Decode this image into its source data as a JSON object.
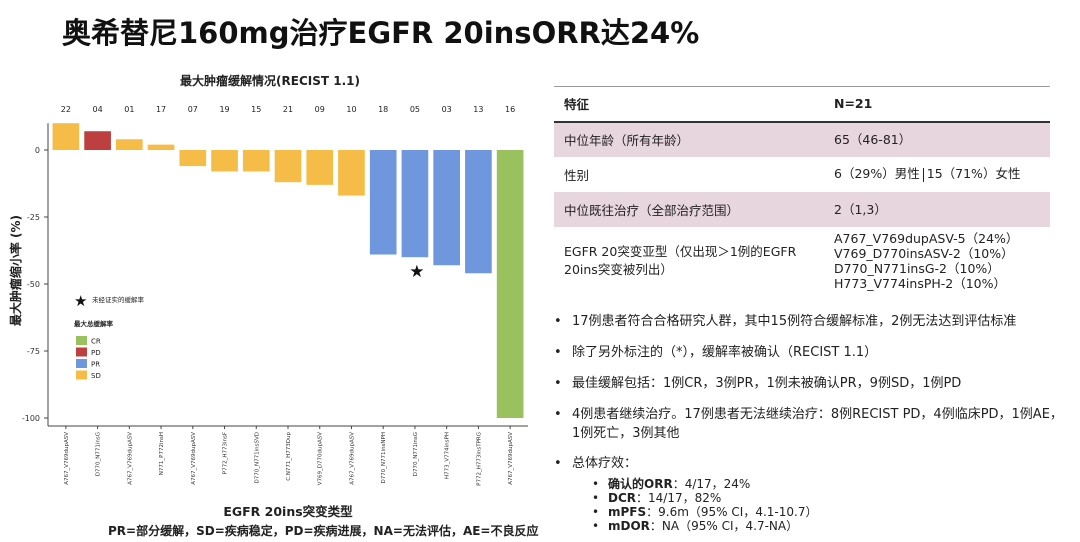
{
  "title": "奥希替尼160mg治疗EGFR 20insORR达24%",
  "chart_data": {
    "type": "bar",
    "title": "最大肿瘤缓解情况(RECIST 1.1)",
    "xlabel": "EGFR 20ins突变类型",
    "ylabel": "最大肿瘤缩小率 (%)",
    "ylim": [
      -100,
      10
    ],
    "yticks": [
      "0",
      "-25",
      "-50",
      "-75",
      "-100"
    ],
    "ytick_values": [
      0,
      -25,
      -50,
      -75,
      -100
    ],
    "patient_ids": [
      "22",
      "04",
      "01",
      "17",
      "07",
      "19",
      "15",
      "21",
      "09",
      "10",
      "18",
      "05",
      "03",
      "13",
      "16"
    ],
    "categories": [
      "A767_V769dupASV",
      "D770_N771insG",
      "A767_V769dupASV",
      "N771_P772insH",
      "A767_V769dupASV",
      "P772_H773insF",
      "D770_N771insSVD",
      "C.N771_H773Dup",
      "V769_D770dupASV",
      "A767_V769dupASV",
      "D770_N771insNPH",
      "D770_N771insG",
      "H773_V774insPH",
      "P772_H773insTPRG",
      "A767_V769dupASV"
    ],
    "values": [
      10,
      7,
      4,
      2,
      -6,
      -8,
      -8,
      -12,
      -13,
      -17,
      -39,
      -40,
      -43,
      -46,
      -100
    ],
    "response": [
      "SD",
      "PD",
      "SD",
      "SD",
      "SD",
      "SD",
      "SD",
      "SD",
      "SD",
      "SD",
      "PR",
      "PR",
      "PR",
      "PR",
      "CR"
    ],
    "unconfirmed_index": 11,
    "colors": {
      "CR": "#99c15d",
      "PD": "#bd3f3f",
      "PR": "#6f97dd",
      "SD": "#f5bc47"
    },
    "annotation": "未经证实的缓解率",
    "legend_title": "最大总缓解率",
    "legend": [
      "CR",
      "PD",
      "PR",
      "SD"
    ],
    "grid": false,
    "legend_position": "bottom-left"
  },
  "table": {
    "header": [
      "特征",
      "N=21"
    ],
    "rows": [
      {
        "label": "中位年龄（所有年龄）",
        "value": [
          "65（46-81）"
        ]
      },
      {
        "label": "性别",
        "value_a": "6（29%）男性",
        "value_b": "15（71%）女性"
      },
      {
        "label": "中位既往治疗（全部治疗范围）",
        "value": [
          "2（1,3）"
        ]
      },
      {
        "label": "EGFR 20突变亚型（仅出现＞1例的EGFR 20ins突变被列出）",
        "value": [
          "A767_V769dupASV-5（24%）",
          "V769_D770insASV-2（10%）",
          "D770_N771insG-2（10%）",
          "H773_V774insPH-2（10%）"
        ]
      }
    ]
  },
  "bullets": [
    "17例患者符合合格研究人群，其中15例符合缓解标准，2例无法达到评估标准",
    "除了另外标注的（*），缓解率被确认（RECIST 1.1）",
    "最佳缓解包括：1例CR，3例PR，1例未被确认PR，9例SD，1例PD",
    "4例患者继续治疗。17例患者无法继续治疗：8例RECIST PD，4例临床PD，1例AE，1例死亡，3例其他",
    "总体疗效："
  ],
  "efficacy": [
    {
      "label": "确认的ORR",
      "value": "：4/17，24%"
    },
    {
      "label": "DCR",
      "value": "：14/17，82%"
    },
    {
      "label": "mPFS",
      "value": "：9.6m（95% CI，4.1-10.7）"
    },
    {
      "label": "mDOR",
      "value": "：NA（95% CI，4.7-NA）"
    }
  ],
  "footnote": "PR=部分缓解，SD=疾病稳定，PD=疾病进展，NA=无法评估，AE=不良反应"
}
